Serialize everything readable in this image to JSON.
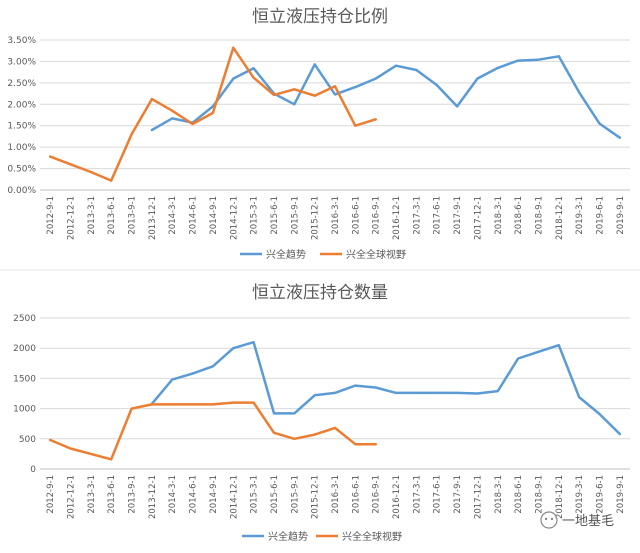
{
  "x_labels": [
    "2012-9-1",
    "2012-12-1",
    "2013-3-1",
    "2013-6-1",
    "2013-9-1",
    "2013-12-1",
    "2014-3-1",
    "2014-6-1",
    "2014-9-1",
    "2014-12-1",
    "2015-3-1",
    "2015-6-1",
    "2015-9-1",
    "2015-12-1",
    "2016-3-1",
    "2016-6-1",
    "2016-9-1",
    "2016-12-1",
    "2017-3-1",
    "2017-6-1",
    "2017-9-1",
    "2017-12-1",
    "2018-3-1",
    "2018-6-1",
    "2018-9-1",
    "2018-12-1",
    "2019-3-1",
    "2019-6-1",
    "2019-9-1"
  ],
  "colors": {
    "series_a": "#5b9bd5",
    "series_b": "#ed7d31",
    "grid": "#d9d9d9",
    "text": "#595959"
  },
  "watermark": "一地基毛",
  "chart_data": [
    {
      "type": "line",
      "title": "恒立液压持仓比例",
      "yticks": [
        "0.00%",
        "0.50%",
        "1.00%",
        "1.50%",
        "2.00%",
        "2.50%",
        "3.00%",
        "3.50%"
      ],
      "ylim": [
        0,
        3.5
      ],
      "grid": true,
      "legend": "bottom",
      "series": [
        {
          "name": "兴全趋势",
          "values": [
            null,
            null,
            null,
            null,
            null,
            1.4,
            1.67,
            1.57,
            1.95,
            2.6,
            2.84,
            2.25,
            2.0,
            2.93,
            2.23,
            2.4,
            2.6,
            2.9,
            2.8,
            2.45,
            1.95,
            2.6,
            2.85,
            3.02,
            3.04,
            3.12,
            2.28,
            1.55,
            1.22
          ]
        },
        {
          "name": "兴全全球视野",
          "values": [
            0.78,
            0.6,
            0.42,
            0.22,
            1.3,
            2.12,
            1.85,
            1.54,
            1.8,
            3.32,
            2.62,
            2.22,
            2.35,
            2.2,
            2.42,
            1.5,
            1.65,
            null,
            null,
            null,
            null,
            null,
            null,
            null,
            null,
            null,
            null,
            null,
            null
          ]
        }
      ]
    },
    {
      "type": "line",
      "title": "恒立液压持仓数量",
      "yticks": [
        "0",
        "500",
        "1000",
        "1500",
        "2000",
        "2500"
      ],
      "ylim": [
        0,
        2500
      ],
      "grid": true,
      "legend": "bottom",
      "series": [
        {
          "name": "兴全趋势",
          "values": [
            null,
            null,
            null,
            null,
            null,
            1080,
            1480,
            1580,
            1700,
            2000,
            2100,
            920,
            920,
            1220,
            1260,
            1380,
            1350,
            1260,
            1260,
            1260,
            1260,
            1250,
            1290,
            1830,
            1940,
            2050,
            1190,
            910,
            580
          ]
        },
        {
          "name": "兴全全球视野",
          "values": [
            480,
            340,
            250,
            160,
            1000,
            1070,
            1070,
            1070,
            1070,
            1100,
            1100,
            600,
            500,
            570,
            680,
            410,
            410,
            null,
            null,
            null,
            null,
            null,
            null,
            null,
            null,
            null,
            null,
            null,
            null
          ]
        }
      ]
    }
  ]
}
